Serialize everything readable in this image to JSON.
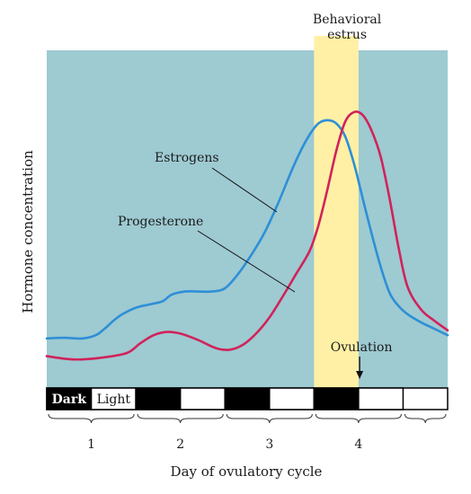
{
  "chart_data": {
    "type": "line",
    "title": "",
    "xlabel": "Day of ovulatory cycle",
    "ylabel": "Hormone concentration",
    "xlim": [
      0.0,
      4.5
    ],
    "ylim": [
      0,
      100
    ],
    "x_ticks": [
      {
        "value": 0.5,
        "label": "1"
      },
      {
        "value": 1.5,
        "label": "2"
      },
      {
        "value": 2.5,
        "label": "3"
      },
      {
        "value": 3.5,
        "label": "4"
      }
    ],
    "grid": false,
    "legend": "none",
    "colors": {
      "plot_background": "#9ecad2",
      "estrus_band": "#fff0a6",
      "estrogens": "#2e8fd6",
      "progesterone": "#d0235a",
      "dark_period": "#000000",
      "light_period": "#ffffff"
    },
    "series": [
      {
        "name": "Estrogens",
        "x": [
          0.0,
          0.2,
          0.4,
          0.55,
          0.65,
          0.75,
          0.85,
          1.0,
          1.15,
          1.3,
          1.4,
          1.55,
          1.7,
          1.85,
          2.0,
          2.15,
          2.3,
          2.45,
          2.6,
          2.75,
          2.85,
          2.95,
          3.05,
          3.15,
          3.25,
          3.35,
          3.45,
          3.55,
          3.65,
          3.75,
          3.85,
          3.95,
          4.05,
          4.2,
          4.35,
          4.5
        ],
        "values": [
          12.0,
          12.2,
          12.0,
          13.0,
          15.0,
          17.5,
          19.5,
          21.5,
          22.5,
          23.5,
          25.5,
          26.5,
          26.5,
          26.5,
          27.5,
          32.0,
          38.0,
          45.0,
          54.0,
          64.0,
          70.0,
          75.0,
          78.5,
          79.5,
          78.5,
          74.5,
          66.0,
          55.0,
          44.0,
          34.0,
          26.0,
          22.0,
          19.5,
          17.0,
          15.0,
          13.0
        ]
      },
      {
        "name": "Progesterone",
        "x": [
          0.0,
          0.3,
          0.6,
          0.9,
          1.05,
          1.2,
          1.35,
          1.5,
          1.7,
          1.9,
          2.05,
          2.2,
          2.35,
          2.5,
          2.65,
          2.8,
          2.95,
          3.05,
          3.15,
          3.25,
          3.35,
          3.45,
          3.55,
          3.65,
          3.75,
          3.85,
          3.95,
          4.05,
          4.2,
          4.35,
          4.5
        ],
        "values": [
          6.5,
          5.5,
          6.0,
          7.5,
          10.5,
          13.0,
          14.0,
          13.5,
          11.5,
          9.0,
          8.5,
          10.0,
          13.5,
          18.5,
          25.0,
          32.0,
          39.0,
          47.0,
          58.0,
          70.0,
          79.0,
          82.0,
          81.0,
          76.0,
          68.0,
          55.0,
          40.0,
          28.0,
          21.0,
          17.5,
          14.5
        ]
      }
    ],
    "annotations": [
      {
        "id": "estrogens",
        "text": "Estrogens"
      },
      {
        "id": "progesterone",
        "text": "Progesterone"
      },
      {
        "id": "estrus",
        "lines": [
          "Behavioral",
          "estrus"
        ],
        "x_range": [
          3.0,
          3.5
        ]
      },
      {
        "id": "ovulation",
        "text": "Ovulation",
        "x": 3.25
      }
    ],
    "light_dark_bar": {
      "segments": [
        {
          "x_start": 0.0,
          "x_end": 0.5,
          "phase": "dark",
          "label": "Dark"
        },
        {
          "x_start": 0.5,
          "x_end": 1.0,
          "phase": "light",
          "label": "Light"
        },
        {
          "x_start": 1.0,
          "x_end": 1.5,
          "phase": "dark",
          "label": ""
        },
        {
          "x_start": 1.5,
          "x_end": 2.0,
          "phase": "light",
          "label": ""
        },
        {
          "x_start": 2.0,
          "x_end": 2.5,
          "phase": "dark",
          "label": ""
        },
        {
          "x_start": 2.5,
          "x_end": 3.0,
          "phase": "light",
          "label": ""
        },
        {
          "x_start": 3.0,
          "x_end": 3.5,
          "phase": "dark",
          "label": ""
        },
        {
          "x_start": 3.5,
          "x_end": 4.0,
          "phase": "light",
          "label": ""
        }
      ]
    },
    "day_brackets": [
      {
        "x_start": 0.0,
        "x_end": 1.0
      },
      {
        "x_start": 1.0,
        "x_end": 2.0
      },
      {
        "x_start": 2.0,
        "x_end": 3.0
      },
      {
        "x_start": 3.0,
        "x_end": 4.0
      },
      {
        "x_start": 4.0,
        "x_end": 4.5
      }
    ]
  }
}
